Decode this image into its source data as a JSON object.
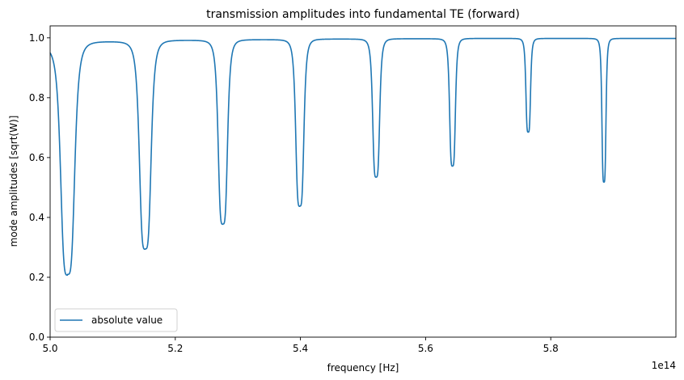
{
  "chart_data": {
    "type": "line",
    "title": "transmission amplitudes into fundamental TE (forward)",
    "xlabel": "frequency [Hz]",
    "ylabel": "mode amplitudes [sqrt(W)]",
    "x_offset_label": "1e14",
    "xlim": [
      5.0,
      6.0
    ],
    "ylim": [
      0.0,
      1.04
    ],
    "x_ticks": [
      "5.0",
      "5.2",
      "5.4",
      "5.6",
      "5.8"
    ],
    "x_tick_values": [
      5.0,
      5.2,
      5.4,
      5.6,
      5.8
    ],
    "y_ticks": [
      "0.0",
      "0.2",
      "0.4",
      "0.6",
      "0.8",
      "1.0"
    ],
    "y_tick_values": [
      0.0,
      0.2,
      0.4,
      0.6,
      0.8,
      1.0
    ],
    "grid": false,
    "legend": {
      "position": "lower left",
      "entries": [
        "absolute value"
      ]
    },
    "series": [
      {
        "name": "absolute value",
        "color": "#1f77b4",
        "start_value": 0.975,
        "dips": [
          {
            "x": 5.028,
            "min": 0.21,
            "width": 0.012,
            "plateau": 0.988
          },
          {
            "x": 5.152,
            "min": 0.295,
            "width": 0.01,
            "plateau": 0.992
          },
          {
            "x": 5.276,
            "min": 0.378,
            "width": 0.008,
            "plateau": 0.994
          },
          {
            "x": 5.399,
            "min": 0.438,
            "width": 0.007,
            "plateau": 0.996
          },
          {
            "x": 5.521,
            "min": 0.535,
            "width": 0.006,
            "plateau": 0.997
          },
          {
            "x": 5.643,
            "min": 0.572,
            "width": 0.005,
            "plateau": 0.998
          },
          {
            "x": 5.764,
            "min": 0.685,
            "width": 0.004,
            "plateau": 0.998
          },
          {
            "x": 5.885,
            "min": 0.518,
            "width": 0.0035,
            "plateau": 0.998
          }
        ]
      }
    ]
  }
}
